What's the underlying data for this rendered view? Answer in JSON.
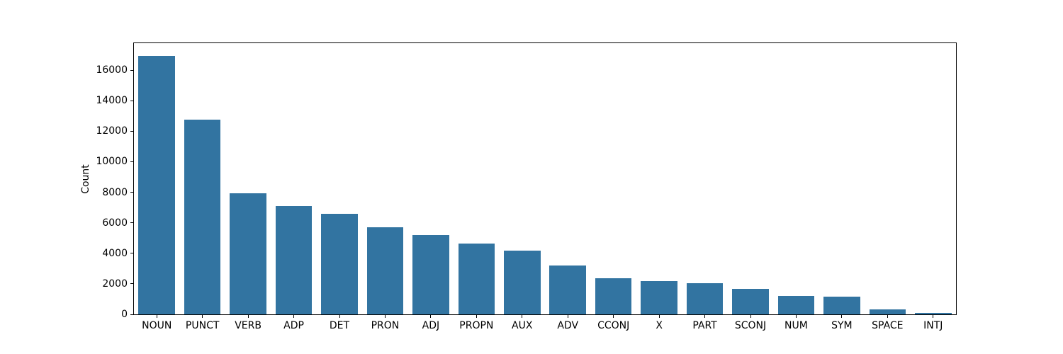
{
  "figure": {
    "background": "#ffffff",
    "axes_edge_color": "#000000",
    "text_color": "#000000"
  },
  "chart_data": {
    "type": "bar",
    "title": "",
    "xlabel": "",
    "ylabel": "Count",
    "categories": [
      "NOUN",
      "PUNCT",
      "VERB",
      "ADP",
      "DET",
      "PRON",
      "ADJ",
      "PROPN",
      "AUX",
      "ADV",
      "CCONJ",
      "X",
      "PART",
      "SCONJ",
      "NUM",
      "SYM",
      "SPACE",
      "INTJ"
    ],
    "values": [
      16925,
      12760,
      7920,
      7120,
      6580,
      5700,
      5200,
      4625,
      4180,
      3200,
      2360,
      2190,
      2020,
      1680,
      1200,
      1160,
      340,
      100
    ],
    "bar_color": "#3274a1",
    "bar_rel_width": 0.8,
    "ylim": [
      0,
      17770
    ],
    "yticks": [
      0,
      2000,
      4000,
      6000,
      8000,
      10000,
      12000,
      14000,
      16000
    ],
    "grid": false,
    "legend": null
  }
}
